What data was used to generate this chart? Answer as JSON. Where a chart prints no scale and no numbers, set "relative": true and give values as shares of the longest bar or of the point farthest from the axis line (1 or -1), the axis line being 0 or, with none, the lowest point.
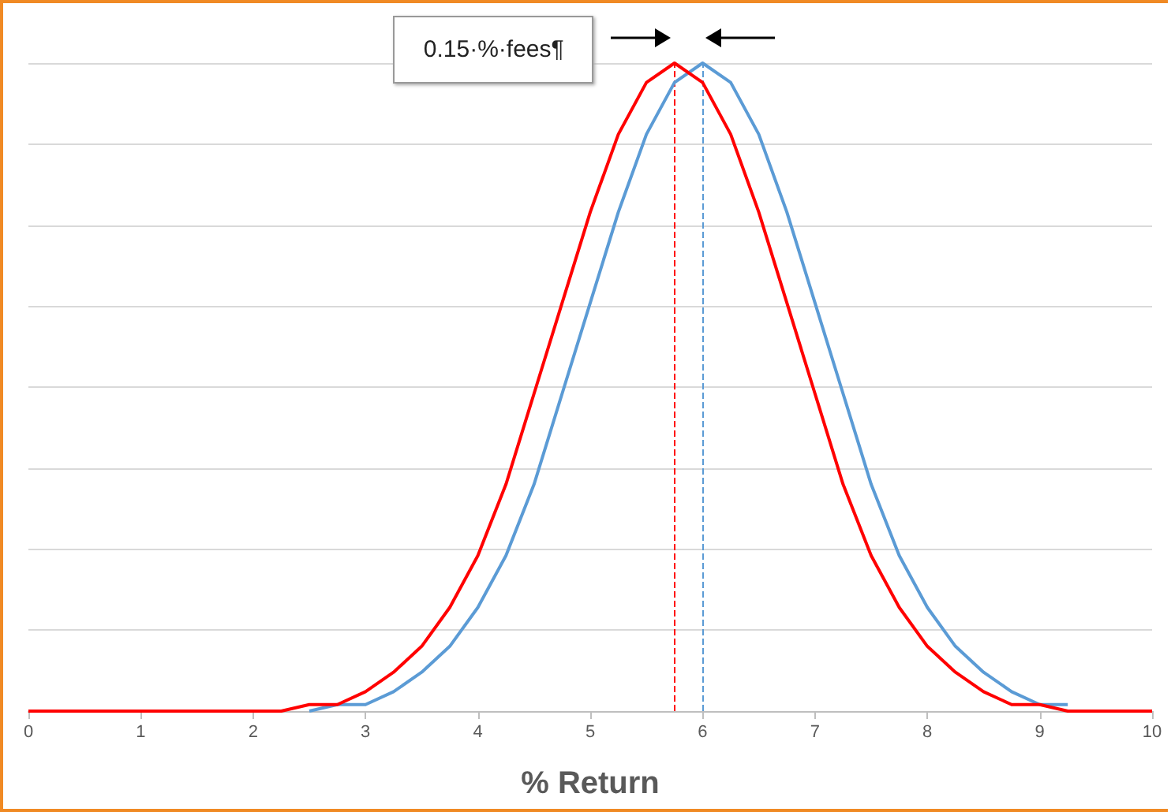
{
  "chart_data": {
    "type": "line",
    "relative": true,
    "xlabel": "% Return",
    "x": [
      0,
      0.25,
      0.5,
      0.75,
      1,
      1.25,
      1.5,
      1.75,
      2,
      2.25,
      2.5,
      2.75,
      3,
      3.25,
      3.5,
      3.75,
      4,
      4.25,
      4.5,
      4.75,
      5,
      5.25,
      5.5,
      5.75,
      6,
      6.25,
      6.5,
      6.75,
      7,
      7.25,
      7.5,
      7.75,
      8,
      8.25,
      8.5,
      8.75,
      9,
      9.25,
      9.5,
      9.75,
      10
    ],
    "series": [
      {
        "color": "#ff0000",
        "values": [
          0,
          0,
          0,
          0,
          0,
          0,
          0,
          0,
          0,
          0,
          0.01,
          0.01,
          0.03,
          0.06,
          0.1,
          0.16,
          0.24,
          0.35,
          0.49,
          0.63,
          0.77,
          0.89,
          0.97,
          1,
          0.97,
          0.89,
          0.77,
          0.63,
          0.49,
          0.35,
          0.24,
          0.16,
          0.1,
          0.06,
          0.03,
          0.01,
          0.01,
          0,
          0,
          0,
          0
        ]
      },
      {
        "color": "#5b9bd5",
        "values": [
          null,
          null,
          null,
          null,
          null,
          null,
          null,
          null,
          null,
          null,
          0,
          0.01,
          0.01,
          0.03,
          0.06,
          0.1,
          0.16,
          0.24,
          0.35,
          0.49,
          0.63,
          0.77,
          0.89,
          0.97,
          1,
          0.97,
          0.89,
          0.77,
          0.63,
          0.49,
          0.35,
          0.24,
          0.16,
          0.1,
          0.06,
          0.03,
          0.01,
          0.01,
          null,
          null,
          null
        ]
      }
    ],
    "xlim": [
      0,
      10
    ],
    "xticks": [
      0,
      1,
      2,
      3,
      4,
      5,
      6,
      7,
      8,
      9,
      10
    ],
    "ref_lines": [
      {
        "axis": "x",
        "value": 5.75,
        "color": "#ff0000",
        "line_style": "dashed"
      },
      {
        "axis": "x",
        "value": 6,
        "color": "#5b9bd5",
        "line_style": "dashed"
      }
    ],
    "annotations": [
      "0.15·%·fees¶"
    ],
    "grid": "y",
    "marker": "none",
    "line_style": "solid"
  }
}
